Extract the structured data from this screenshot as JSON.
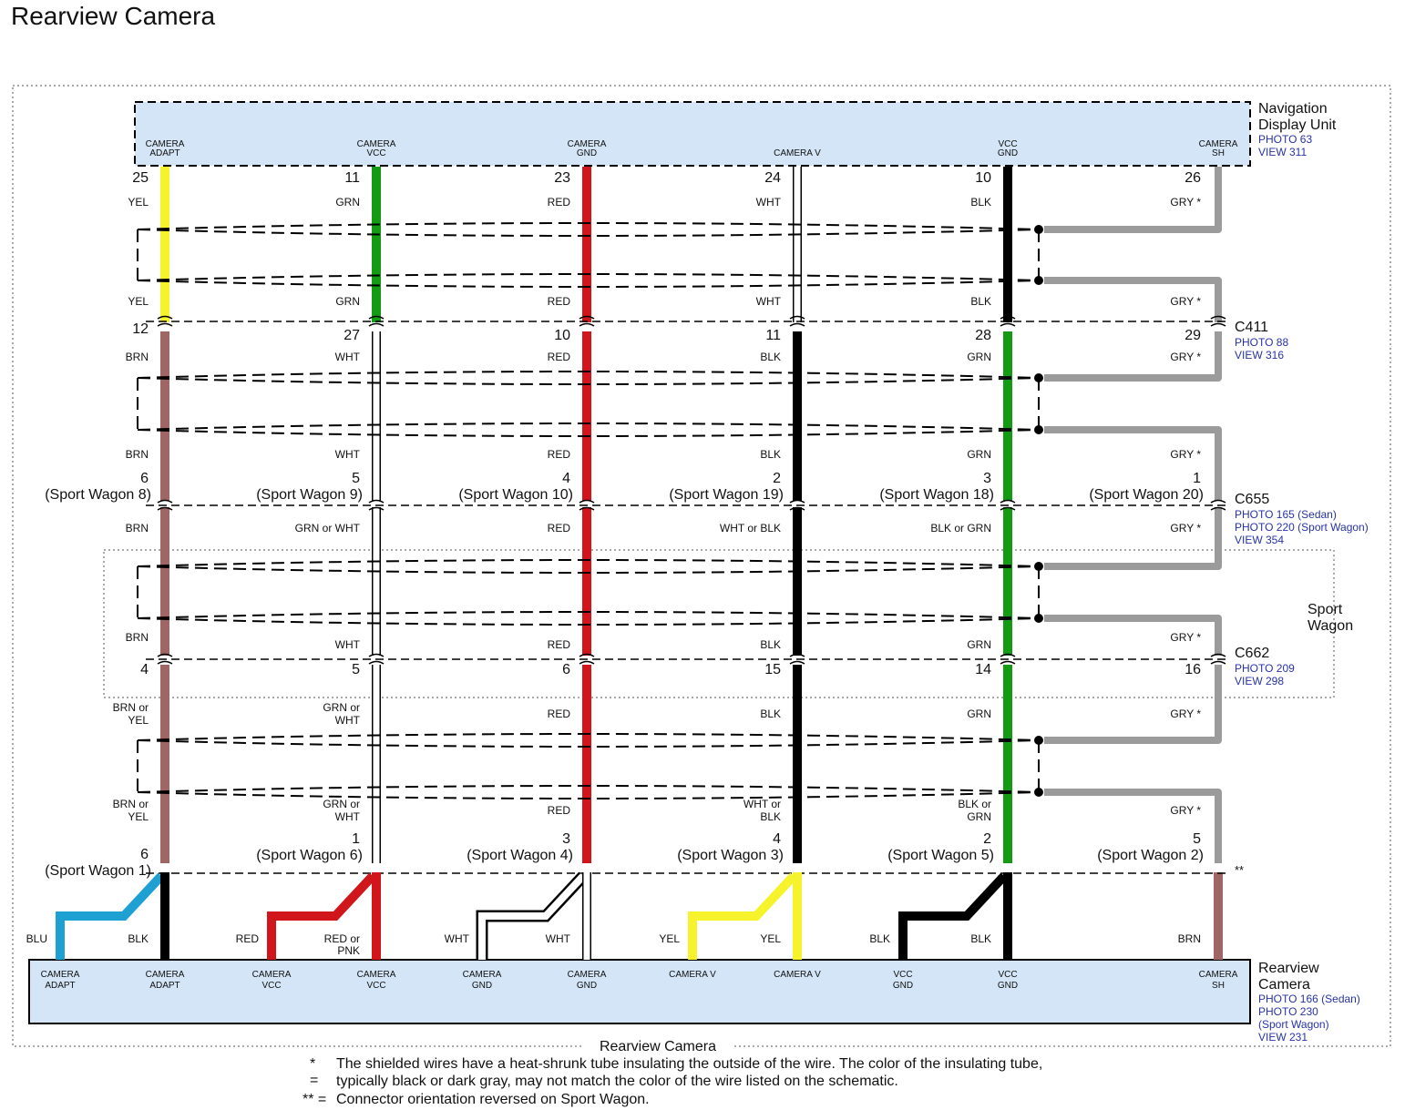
{
  "title": "Rearview Camera",
  "colors": {
    "YEL": "#f6f32c",
    "GRN": "#149b14",
    "RED": "#d0151b",
    "WHT": "#ffffff",
    "BLK": "#000000",
    "GRY": "#9b9b9b",
    "BRN": "#a06565",
    "BLU": "#1ea0d2",
    "unit_fill": "#d3e5f6",
    "link": "#2733a8"
  },
  "navigation_unit": {
    "name_lines": [
      "Navigation",
      "Display Unit"
    ],
    "refs": [
      "PHOTO 63",
      "VIEW 311"
    ],
    "pins": [
      [
        "CAMERA",
        "ADAPT"
      ],
      [
        "CAMERA",
        "VCC"
      ],
      [
        "CAMERA",
        "GND"
      ],
      [
        "CAMERA V"
      ],
      [
        "VCC",
        "GND"
      ],
      [
        "CAMERA",
        "SH"
      ]
    ]
  },
  "rearview_unit": {
    "name_lines": [
      "Rearview",
      "Camera"
    ],
    "refs": [
      "PHOTO 166 (Sedan)",
      "PHOTO 230",
      "(Sport Wagon)",
      "VIEW 231"
    ],
    "pins": [
      [
        "CAMERA",
        "ADAPT"
      ],
      [
        "CAMERA",
        "ADAPT"
      ],
      [
        "CAMERA",
        "VCC"
      ],
      [
        "CAMERA",
        "VCC"
      ],
      [
        "CAMERA",
        "GND"
      ],
      [
        "CAMERA",
        "GND"
      ],
      [
        "CAMERA V"
      ],
      [
        "CAMERA V"
      ],
      [
        "VCC",
        "GND"
      ],
      [
        "VCC",
        "GND"
      ],
      [
        "CAMERA",
        "SH"
      ]
    ]
  },
  "connectors": [
    {
      "name": "C411",
      "refs": [
        "PHOTO 88",
        "VIEW 316"
      ]
    },
    {
      "name": "C655",
      "refs": [
        "PHOTO 165 (Sedan)",
        "PHOTO 220 (Sport Wagon)",
        "VIEW 354"
      ]
    },
    {
      "name": "C662",
      "refs": [
        "PHOTO 209",
        "VIEW 298"
      ]
    }
  ],
  "sport_wagon_label": [
    "Sport",
    "Wagon"
  ],
  "bottom_marker": "**",
  "pin_numbers": {
    "nav": [
      "25",
      "11",
      "23",
      "24",
      "10",
      "26"
    ],
    "c411": [
      "12",
      "27",
      "10",
      "11",
      "28",
      "29"
    ],
    "c655_num": [
      "6",
      "5",
      "4",
      "2",
      "3",
      "1"
    ],
    "c655_sw": [
      "(Sport Wagon 8)",
      "(Sport Wagon 9)",
      "(Sport Wagon 10)",
      "(Sport Wagon 19)",
      "(Sport Wagon 18)",
      "(Sport Wagon 20)"
    ],
    "c662": [
      "4",
      "5",
      "6",
      "15",
      "14",
      "16"
    ],
    "bottom_num": [
      "6",
      "1",
      "3",
      "4",
      "2",
      "5"
    ],
    "bottom_sw": [
      "(Sport Wagon 1)",
      "(Sport Wagon 6)",
      "(Sport Wagon 4)",
      "(Sport Wagon 3)",
      "(Sport Wagon 5)",
      "(Sport Wagon 2)"
    ]
  },
  "wire_labels": {
    "seg1_top": [
      "YEL",
      "GRN",
      "RED",
      "WHT",
      "BLK",
      "GRY *"
    ],
    "seg1_bot": [
      "YEL",
      "GRN",
      "RED",
      "WHT",
      "BLK",
      "GRY *"
    ],
    "seg2_top": [
      "BRN",
      "WHT",
      "RED",
      "BLK",
      "GRN",
      "GRY *"
    ],
    "seg2_bot": [
      "BRN",
      "WHT",
      "RED",
      "BLK",
      "GRN",
      "GRY *"
    ],
    "seg3_top": [
      "BRN",
      "GRN or WHT",
      "RED",
      "WHT or BLK",
      "BLK or GRN",
      "GRY *"
    ],
    "seg3_bot": [
      "BRN",
      "WHT",
      "RED",
      "BLK",
      "GRN",
      "GRY *"
    ],
    "seg4_top": [
      [
        "BRN or",
        "YEL"
      ],
      [
        "GRN or",
        "WHT"
      ],
      [
        "RED"
      ],
      [
        "BLK"
      ],
      [
        "GRN"
      ],
      [
        "GRY *"
      ]
    ],
    "seg4_bot": [
      [
        "BRN or",
        "YEL"
      ],
      [
        "GRN or",
        "WHT"
      ],
      [
        "RED"
      ],
      [
        "WHT or",
        "BLK"
      ],
      [
        "BLK or",
        "GRN"
      ],
      [
        "GRY *"
      ]
    ],
    "splits_left": [
      "BLU",
      "RED",
      "WHT",
      "YEL",
      "BLK"
    ],
    "splits_right": [
      [
        "BLK"
      ],
      [
        "RED or",
        "PNK"
      ],
      [
        "WHT"
      ],
      [
        "YEL"
      ],
      [
        "BLK"
      ]
    ],
    "sh_bottom": "BRN"
  },
  "wire_colors": {
    "seg1": [
      "YEL",
      "GRN",
      "RED",
      "WHT",
      "BLK",
      "GRY"
    ],
    "seg2": [
      "BRN",
      "WHT",
      "RED",
      "BLK",
      "GRN",
      "GRY"
    ],
    "seg3": [
      "BRN",
      "WHT",
      "RED",
      "BLK",
      "GRN",
      "GRY"
    ],
    "seg4": [
      "BRN",
      "WHT",
      "RED",
      "BLK",
      "GRN",
      "GRY"
    ],
    "bottom_left": [
      "BLU",
      "RED",
      "WHT",
      "YEL",
      "BLK"
    ],
    "bottom_right": [
      "BLK",
      "RED",
      "WHT",
      "YEL",
      "BLK"
    ],
    "sh_bottom": "BRN"
  },
  "frame_label": "Rearview Camera",
  "footnotes": [
    {
      "mark": "* =",
      "lines": [
        "The shielded wires have a heat-shrunk tube insulating the outside of the wire. The color of the insulating tube,",
        "typically black or dark gray, may not match the color of the wire listed on the schematic."
      ]
    },
    {
      "mark": "** =",
      "lines": [
        "Connector orientation reversed on Sport Wagon."
      ]
    }
  ]
}
